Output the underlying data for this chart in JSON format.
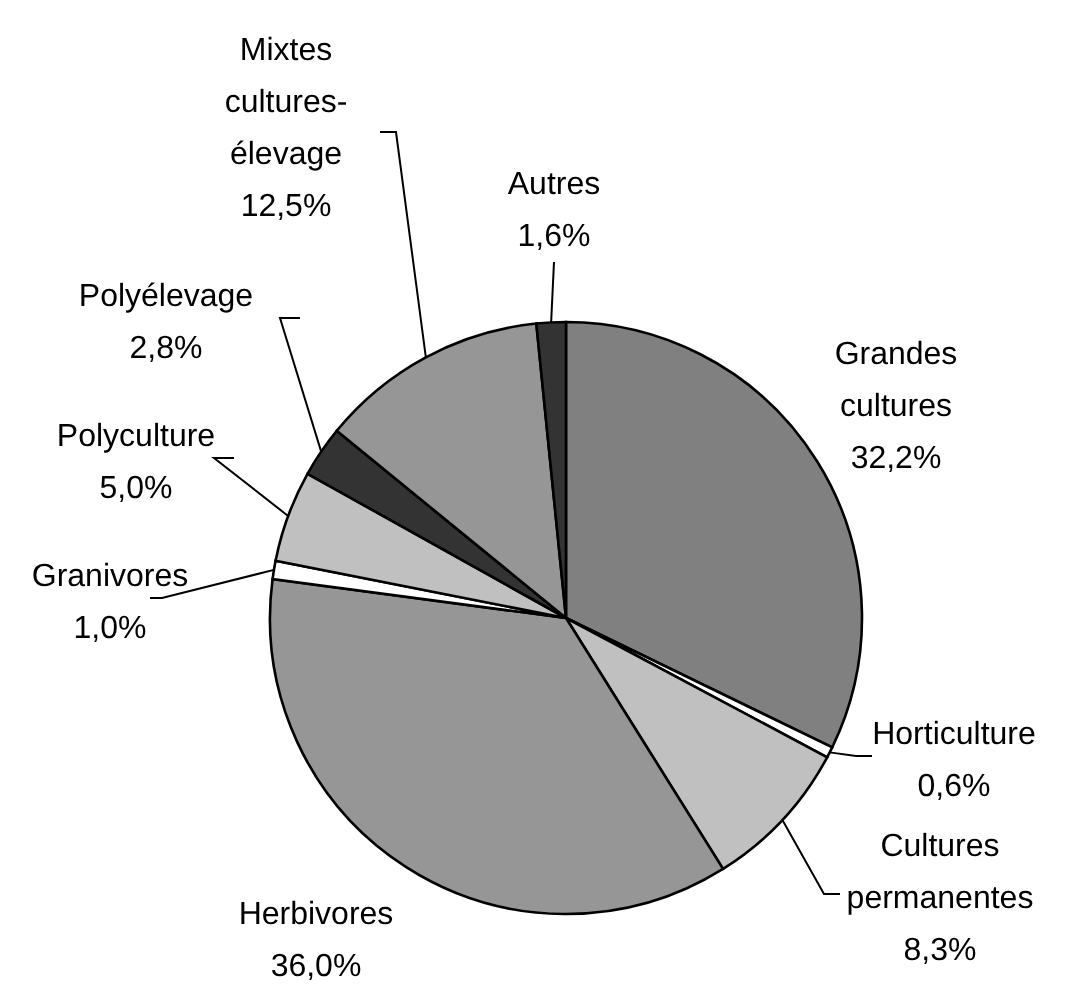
{
  "chart_data": {
    "type": "pie",
    "categories": [
      "Grandes cultures",
      "Horticulture",
      "Cultures permanentes",
      "Herbivores",
      "Granivores",
      "Polyculture",
      "Polyélevage",
      "Mixtes cultures-élevage",
      "Autres"
    ],
    "values": [
      32.2,
      0.6,
      8.3,
      36.0,
      1.0,
      5.0,
      2.8,
      12.5,
      1.6
    ],
    "colors": [
      "#808080",
      "#ffffff",
      "#c0c0c0",
      "#969696",
      "#ffffff",
      "#c0c0c0",
      "#333333",
      "#969696",
      "#333333"
    ],
    "value_labels": [
      "32,2%",
      "0,6%",
      "8,3%",
      "36,0%",
      "1,0%",
      "5,0%",
      "2,8%",
      "12,5%",
      "1,6%"
    ]
  }
}
